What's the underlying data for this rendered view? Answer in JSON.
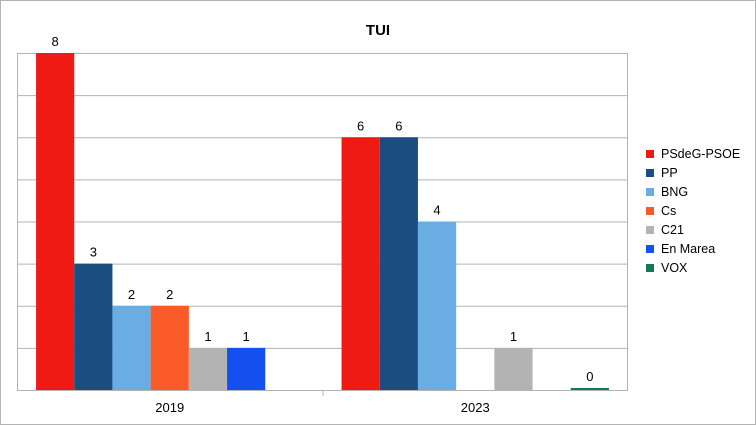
{
  "chart_data": {
    "type": "bar",
    "title": "TUI",
    "xlabel": "",
    "ylabel": "",
    "categories": [
      "2019",
      "2023"
    ],
    "ylim": [
      0,
      8
    ],
    "grid": true,
    "legend_position": "right",
    "series": [
      {
        "name": "PSdeG-PSOE",
        "color": "#f01a14",
        "values": [
          8,
          6
        ]
      },
      {
        "name": "PP",
        "color": "#1a4d80",
        "values": [
          3,
          6
        ]
      },
      {
        "name": "BNG",
        "color": "#6aade4",
        "values": [
          2,
          4
        ]
      },
      {
        "name": "Cs",
        "color": "#fa5a28",
        "values": [
          2,
          null
        ]
      },
      {
        "name": "C21",
        "color": "#b3b3b3",
        "values": [
          1,
          1
        ]
      },
      {
        "name": "En Marea",
        "color": "#144ff0",
        "values": [
          1,
          null
        ]
      },
      {
        "name": "VOX",
        "color": "#147850",
        "values": [
          null,
          0
        ]
      }
    ]
  }
}
